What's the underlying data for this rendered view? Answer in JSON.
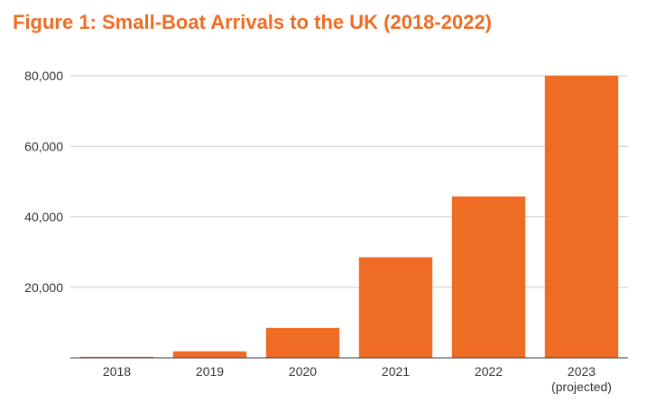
{
  "chart_data": {
    "type": "bar",
    "title": "Figure 1: Small-Boat Arrivals to the UK (2018-2022)",
    "categories": [
      "2018",
      "2019",
      "2020",
      "2021",
      "2022",
      "2023\n(projected)"
    ],
    "values": [
      299,
      1843,
      8466,
      28526,
      45755,
      80000
    ],
    "ylim": [
      0,
      80000
    ],
    "yticks": [
      20000,
      40000,
      60000,
      80000
    ],
    "ytick_labels": [
      "20,000",
      "40,000",
      "60,000",
      "80,000"
    ],
    "grid": true,
    "bar_color": "#ef6c24"
  }
}
